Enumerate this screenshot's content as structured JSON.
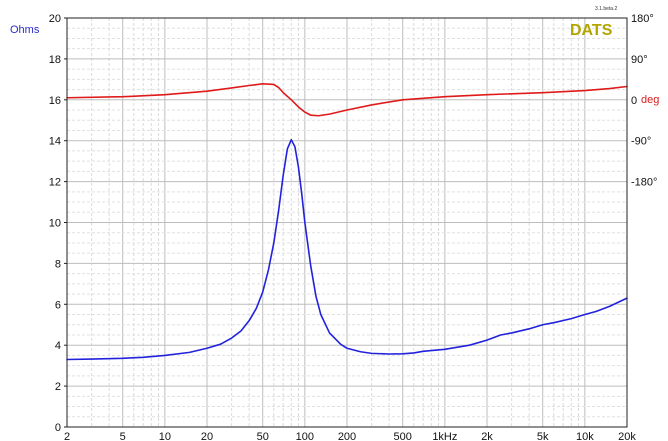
{
  "chart_data": {
    "type": "line",
    "brand": "DATS",
    "brand_color": "#b3a500",
    "version": "3.1.beta.2",
    "x_scale": "log",
    "xlim": [
      2,
      20000
    ],
    "x_ticks": [
      {
        "value": 2,
        "label": "2"
      },
      {
        "value": 5,
        "label": "5"
      },
      {
        "value": 10,
        "label": "10"
      },
      {
        "value": 20,
        "label": "20"
      },
      {
        "value": 50,
        "label": "50"
      },
      {
        "value": 100,
        "label": "100"
      },
      {
        "value": 200,
        "label": "200"
      },
      {
        "value": 500,
        "label": "500"
      },
      {
        "value": 1000,
        "label": "1kHz"
      },
      {
        "value": 2000,
        "label": "2k"
      },
      {
        "value": 5000,
        "label": "5k"
      },
      {
        "value": 10000,
        "label": "10k"
      },
      {
        "value": 20000,
        "label": "20k"
      }
    ],
    "y_left": {
      "label": "Ohms",
      "color": "#2a2acc",
      "ylim": [
        0,
        20
      ],
      "ticks": [
        0,
        2,
        4,
        6,
        8,
        10,
        12,
        14,
        16,
        18,
        20
      ]
    },
    "y_right": {
      "label": "deg",
      "color": "#d81e1e",
      "ticks": [
        {
          "ohm_pos": 20,
          "label": "180°"
        },
        {
          "ohm_pos": 18,
          "label": "90°"
        },
        {
          "ohm_pos": 16,
          "label": "0"
        },
        {
          "ohm_pos": 14,
          "label": "-90°"
        },
        {
          "ohm_pos": 12,
          "label": "-180°"
        }
      ]
    },
    "grid": true,
    "series": [
      {
        "axis": "left",
        "color": "#2222dd",
        "points": [
          [
            2,
            3.3
          ],
          [
            3,
            3.32
          ],
          [
            5,
            3.36
          ],
          [
            7,
            3.41
          ],
          [
            10,
            3.5
          ],
          [
            15,
            3.65
          ],
          [
            20,
            3.85
          ],
          [
            25,
            4.05
          ],
          [
            30,
            4.35
          ],
          [
            35,
            4.7
          ],
          [
            40,
            5.2
          ],
          [
            45,
            5.8
          ],
          [
            50,
            6.6
          ],
          [
            55,
            7.7
          ],
          [
            60,
            9.0
          ],
          [
            65,
            10.6
          ],
          [
            70,
            12.3
          ],
          [
            75,
            13.6
          ],
          [
            80,
            14.05
          ],
          [
            85,
            13.7
          ],
          [
            90,
            12.7
          ],
          [
            95,
            11.4
          ],
          [
            100,
            10.0
          ],
          [
            110,
            7.9
          ],
          [
            120,
            6.4
          ],
          [
            130,
            5.5
          ],
          [
            150,
            4.6
          ],
          [
            180,
            4.05
          ],
          [
            200,
            3.85
          ],
          [
            250,
            3.68
          ],
          [
            300,
            3.6
          ],
          [
            400,
            3.57
          ],
          [
            500,
            3.58
          ],
          [
            600,
            3.62
          ],
          [
            700,
            3.7
          ],
          [
            1000,
            3.8
          ],
          [
            1500,
            4.0
          ],
          [
            2000,
            4.25
          ],
          [
            2500,
            4.5
          ],
          [
            3000,
            4.6
          ],
          [
            4000,
            4.8
          ],
          [
            5000,
            5.0
          ],
          [
            6000,
            5.1
          ],
          [
            8000,
            5.3
          ],
          [
            10000,
            5.5
          ],
          [
            12000,
            5.65
          ],
          [
            15000,
            5.9
          ],
          [
            20000,
            6.3
          ]
        ]
      },
      {
        "axis": "right",
        "color": "#e01a1a",
        "points": [
          [
            2,
            16.1
          ],
          [
            5,
            16.15
          ],
          [
            10,
            16.25
          ],
          [
            20,
            16.42
          ],
          [
            30,
            16.58
          ],
          [
            40,
            16.7
          ],
          [
            50,
            16.78
          ],
          [
            60,
            16.75
          ],
          [
            65,
            16.6
          ],
          [
            70,
            16.35
          ],
          [
            80,
            16.0
          ],
          [
            90,
            15.65
          ],
          [
            100,
            15.4
          ],
          [
            110,
            15.25
          ],
          [
            125,
            15.22
          ],
          [
            150,
            15.3
          ],
          [
            200,
            15.5
          ],
          [
            300,
            15.75
          ],
          [
            500,
            16.0
          ],
          [
            1000,
            16.15
          ],
          [
            2000,
            16.25
          ],
          [
            5000,
            16.35
          ],
          [
            10000,
            16.45
          ],
          [
            15000,
            16.55
          ],
          [
            20000,
            16.65
          ]
        ]
      }
    ]
  }
}
